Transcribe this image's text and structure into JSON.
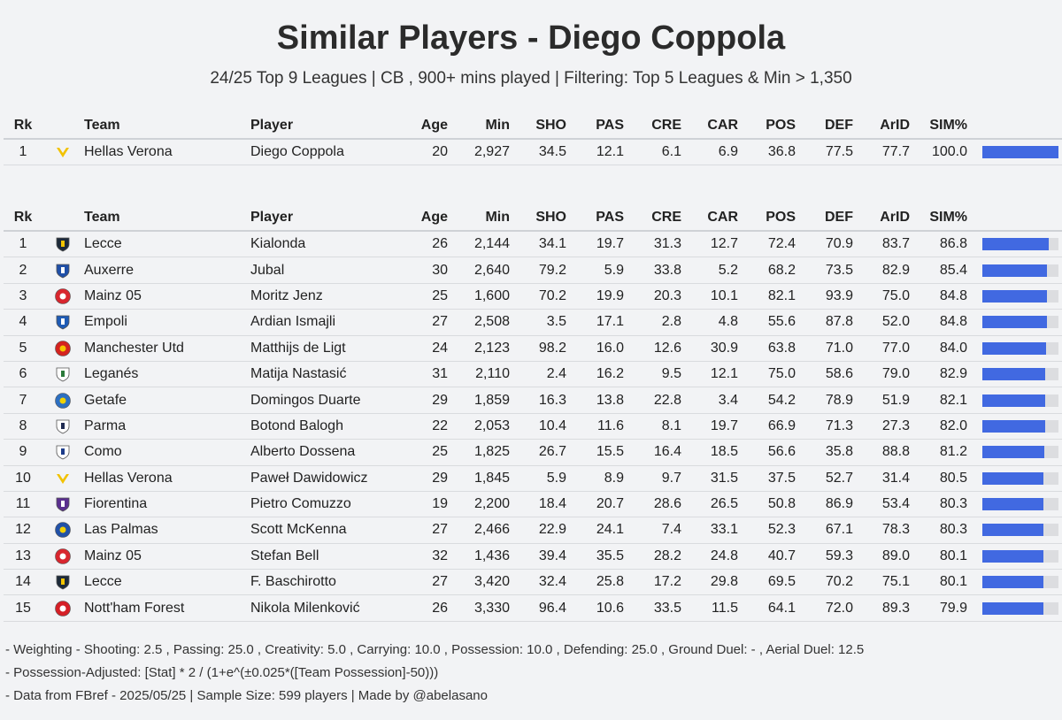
{
  "title": "Similar Players - Diego Coppola",
  "subtitle": "24/25 Top 9 Leagues | CB , 900+ mins played | Filtering: Top 5 Leagues & Min > 1,350",
  "columns": [
    "Rk",
    "Team",
    "Player",
    "Age",
    "Min",
    "SHO",
    "PAS",
    "CRE",
    "CAR",
    "POS",
    "DEF",
    "ArID",
    "SIM%"
  ],
  "colors": {
    "bar": "#4169e1",
    "track": "#dcdde0",
    "background": "#f2f3f5"
  },
  "chart_data": {
    "type": "table",
    "target": [
      {
        "rk": "1",
        "team": "Hellas Verona",
        "logo": "hellas-verona-logo",
        "player": "Diego Coppola",
        "age": "20",
        "min": "2,927",
        "sho": "34.5",
        "pas": "12.1",
        "cre": "6.1",
        "car": "6.9",
        "pos": "36.8",
        "def": "77.5",
        "arid": "77.7",
        "sim": "100.0",
        "sim_value": 100.0
      }
    ],
    "rows": [
      {
        "rk": "1",
        "team": "Lecce",
        "logo": "lecce-logo",
        "player": "Kialonda",
        "age": "26",
        "min": "2,144",
        "sho": "34.1",
        "pas": "19.7",
        "cre": "31.3",
        "car": "12.7",
        "pos": "72.4",
        "def": "70.9",
        "arid": "83.7",
        "sim": "86.8",
        "sim_value": 86.8
      },
      {
        "rk": "2",
        "team": "Auxerre",
        "logo": "auxerre-logo",
        "player": "Jubal",
        "age": "30",
        "min": "2,640",
        "sho": "79.2",
        "pas": "5.9",
        "cre": "33.8",
        "car": "5.2",
        "pos": "68.2",
        "def": "73.5",
        "arid": "82.9",
        "sim": "85.4",
        "sim_value": 85.4
      },
      {
        "rk": "3",
        "team": "Mainz 05",
        "logo": "mainz-05-logo",
        "player": "Moritz Jenz",
        "age": "25",
        "min": "1,600",
        "sho": "70.2",
        "pas": "19.9",
        "cre": "20.3",
        "car": "10.1",
        "pos": "82.1",
        "def": "93.9",
        "arid": "75.0",
        "sim": "84.8",
        "sim_value": 84.8
      },
      {
        "rk": "4",
        "team": "Empoli",
        "logo": "empoli-logo",
        "player": "Ardian Ismajli",
        "age": "27",
        "min": "2,508",
        "sho": "3.5",
        "pas": "17.1",
        "cre": "2.8",
        "car": "4.8",
        "pos": "55.6",
        "def": "87.8",
        "arid": "52.0",
        "sim": "84.8",
        "sim_value": 84.8
      },
      {
        "rk": "5",
        "team": "Manchester Utd",
        "logo": "manchester-utd-logo",
        "player": "Matthijs de Ligt",
        "age": "24",
        "min": "2,123",
        "sho": "98.2",
        "pas": "16.0",
        "cre": "12.6",
        "car": "30.9",
        "pos": "63.8",
        "def": "71.0",
        "arid": "77.0",
        "sim": "84.0",
        "sim_value": 84.0
      },
      {
        "rk": "6",
        "team": "Leganés",
        "logo": "leganes-logo",
        "player": "Matija Nastasić",
        "age": "31",
        "min": "2,110",
        "sho": "2.4",
        "pas": "16.2",
        "cre": "9.5",
        "car": "12.1",
        "pos": "75.0",
        "def": "58.6",
        "arid": "79.0",
        "sim": "82.9",
        "sim_value": 82.9
      },
      {
        "rk": "7",
        "team": "Getafe",
        "logo": "getafe-logo",
        "player": "Domingos Duarte",
        "age": "29",
        "min": "1,859",
        "sho": "16.3",
        "pas": "13.8",
        "cre": "22.8",
        "car": "3.4",
        "pos": "54.2",
        "def": "78.9",
        "arid": "51.9",
        "sim": "82.1",
        "sim_value": 82.1
      },
      {
        "rk": "8",
        "team": "Parma",
        "logo": "parma-logo",
        "player": "Botond Balogh",
        "age": "22",
        "min": "2,053",
        "sho": "10.4",
        "pas": "11.6",
        "cre": "8.1",
        "car": "19.7",
        "pos": "66.9",
        "def": "71.3",
        "arid": "27.3",
        "sim": "82.0",
        "sim_value": 82.0
      },
      {
        "rk": "9",
        "team": "Como",
        "logo": "como-logo",
        "player": "Alberto Dossena",
        "age": "25",
        "min": "1,825",
        "sho": "26.7",
        "pas": "15.5",
        "cre": "16.4",
        "car": "18.5",
        "pos": "56.6",
        "def": "35.8",
        "arid": "88.8",
        "sim": "81.2",
        "sim_value": 81.2
      },
      {
        "rk": "10",
        "team": "Hellas Verona",
        "logo": "hellas-verona-logo",
        "player": "Paweł Dawidowicz",
        "age": "29",
        "min": "1,845",
        "sho": "5.9",
        "pas": "8.9",
        "cre": "9.7",
        "car": "31.5",
        "pos": "37.5",
        "def": "52.7",
        "arid": "31.4",
        "sim": "80.5",
        "sim_value": 80.5
      },
      {
        "rk": "11",
        "team": "Fiorentina",
        "logo": "fiorentina-logo",
        "player": "Pietro Comuzzo",
        "age": "19",
        "min": "2,200",
        "sho": "18.4",
        "pas": "20.7",
        "cre": "28.6",
        "car": "26.5",
        "pos": "50.8",
        "def": "86.9",
        "arid": "53.4",
        "sim": "80.3",
        "sim_value": 80.3
      },
      {
        "rk": "12",
        "team": "Las Palmas",
        "logo": "las-palmas-logo",
        "player": "Scott McKenna",
        "age": "27",
        "min": "2,466",
        "sho": "22.9",
        "pas": "24.1",
        "cre": "7.4",
        "car": "33.1",
        "pos": "52.3",
        "def": "67.1",
        "arid": "78.3",
        "sim": "80.3",
        "sim_value": 80.3
      },
      {
        "rk": "13",
        "team": "Mainz 05",
        "logo": "mainz-05-logo",
        "player": "Stefan Bell",
        "age": "32",
        "min": "1,436",
        "sho": "39.4",
        "pas": "35.5",
        "cre": "28.2",
        "car": "24.8",
        "pos": "40.7",
        "def": "59.3",
        "arid": "89.0",
        "sim": "80.1",
        "sim_value": 80.1
      },
      {
        "rk": "14",
        "team": "Lecce",
        "logo": "lecce-logo",
        "player": "F. Baschirotto",
        "age": "27",
        "min": "3,420",
        "sho": "32.4",
        "pas": "25.8",
        "cre": "17.2",
        "car": "29.8",
        "pos": "69.5",
        "def": "70.2",
        "arid": "75.1",
        "sim": "80.1",
        "sim_value": 80.1
      },
      {
        "rk": "15",
        "team": "Nott'ham Forest",
        "logo": "nottingham-forest-logo",
        "player": "Nikola Milenković",
        "age": "26",
        "min": "3,330",
        "sho": "96.4",
        "pas": "10.6",
        "cre": "33.5",
        "car": "11.5",
        "pos": "64.1",
        "def": "72.0",
        "arid": "89.3",
        "sim": "79.9",
        "sim_value": 79.9
      }
    ],
    "sim_max": 100
  },
  "footer": [
    "- Weighting - Shooting: 2.5 , Passing: 25.0 , Creativity: 5.0 , Carrying: 10.0 , Possession: 10.0 , Defending: 25.0 , Ground Duel: - , Aerial Duel: 12.5",
    "- Possession-Adjusted: [Stat] * 2 / (1+e^(±0.025*([Team Possession]-50)))",
    "- Data from FBref - 2025/05/25 | Sample Size: 599 players | Made by @abelasano"
  ]
}
